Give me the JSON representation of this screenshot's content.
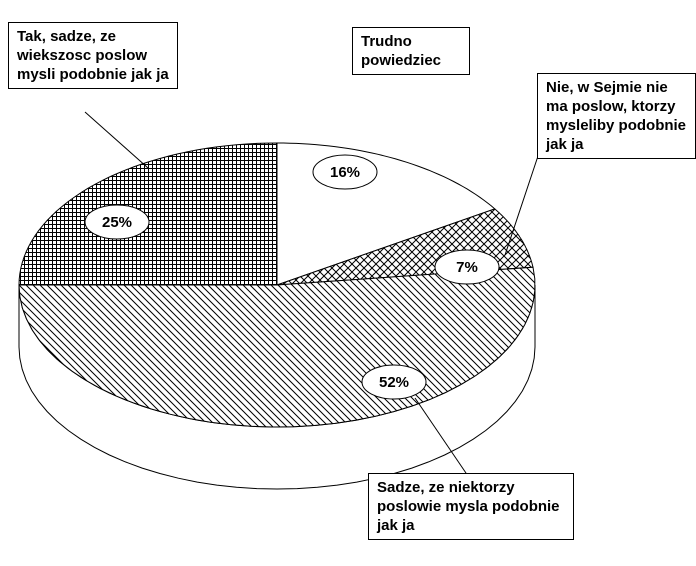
{
  "chart_data": {
    "type": "pie",
    "categories": [
      "Trudno powiedziec",
      "Nie, w Sejmie nie ma poslow, ktorzy mysleliby podobnie jak ja",
      "Sadze, ze niektorzy poslowie mysla podobnie jak ja",
      "Tak, sadze, ze wiekszosc poslow mysli podobnie jak ja"
    ],
    "values": [
      16,
      7,
      52,
      25
    ],
    "value_labels": [
      "16%",
      "7%",
      "52%",
      "25%"
    ],
    "patterns": [
      "none",
      "crosshatch",
      "diagonal",
      "grid"
    ]
  }
}
